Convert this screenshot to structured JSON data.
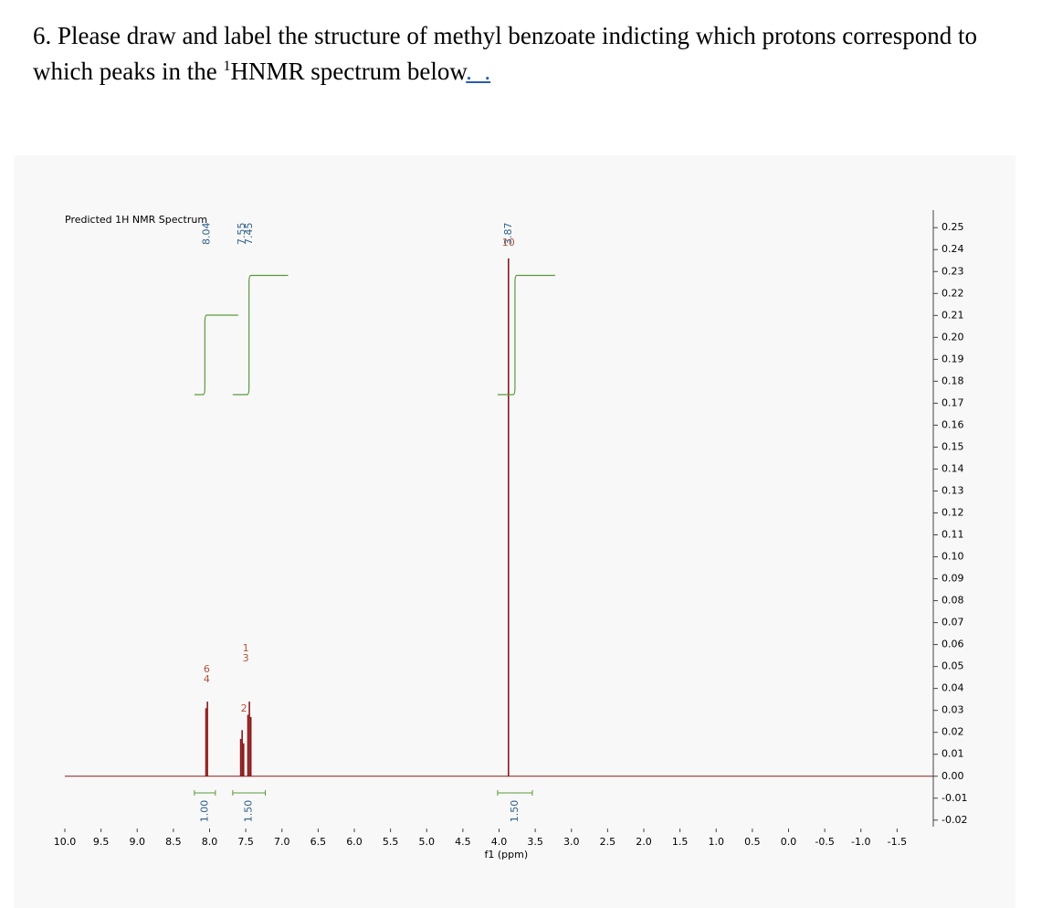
{
  "question": {
    "text": "6. Please draw and label the structure of methyl benzoate indicting which protons correspond to which peaks in the ",
    "superscript": "1",
    "text_after": "HNMR spectrum below",
    "trailing": "._."
  },
  "chart_data": {
    "type": "line",
    "title": "Predicted 1H NMR Spectrum",
    "x_label": "f1 (ppm)",
    "x": [
      8.05,
      8.03,
      7.57,
      7.55,
      7.53,
      7.47,
      7.45,
      7.43,
      3.87
    ],
    "series": [
      {
        "color": "#8b1a1a",
        "values": [
          0.031,
          0.034,
          0.017,
          0.021,
          0.015,
          0.028,
          0.034,
          0.027,
          0.236
        ]
      }
    ],
    "xlim": [
      10.0,
      -2.0
    ],
    "xticks": [
      {
        "value": 10,
        "label": "10.0"
      },
      9.5,
      {
        "value": 9,
        "label": "9.0"
      },
      8.5,
      {
        "value": 8,
        "label": "8.0"
      },
      7.5,
      {
        "value": 7,
        "label": "7.0"
      },
      6.5,
      {
        "value": 6,
        "label": "6.0"
      },
      5.5,
      {
        "value": 5,
        "label": "5.0"
      },
      4.5,
      {
        "value": 4,
        "label": "4.0"
      },
      3.5,
      {
        "value": 3,
        "label": "3.0"
      },
      2.5,
      {
        "value": 2,
        "label": "2.0"
      },
      1.5,
      {
        "value": 1,
        "label": "1.0"
      },
      0.5,
      {
        "value": 0,
        "label": "0.0"
      },
      -0.5,
      {
        "value": -1,
        "label": "-1.0"
      },
      -1.5
    ],
    "ylim": [
      -0.023,
      0.258
    ],
    "yticks": [
      {
        "value": 0.25,
        "label": "0.25"
      },
      {
        "value": 0.24,
        "label": "0.24"
      },
      {
        "value": 0.23,
        "label": "0.23"
      },
      {
        "value": 0.22,
        "label": "0.22"
      },
      {
        "value": 0.21,
        "label": "0.21"
      },
      {
        "value": 0.2,
        "label": "0.20"
      },
      {
        "value": 0.19,
        "label": "0.19"
      },
      {
        "value": 0.18,
        "label": "0.18"
      },
      {
        "value": 0.17,
        "label": "0.17"
      },
      {
        "value": 0.16,
        "label": "0.16"
      },
      {
        "value": 0.15,
        "label": "0.15"
      },
      {
        "value": 0.14,
        "label": "0.14"
      },
      {
        "value": 0.13,
        "label": "0.13"
      },
      {
        "value": 0.12,
        "label": "0.12"
      },
      {
        "value": 0.11,
        "label": "0.11"
      },
      {
        "value": 0.1,
        "label": "0.10"
      },
      {
        "value": 0.09,
        "label": "0.09"
      },
      {
        "value": 0.08,
        "label": "0.08"
      },
      {
        "value": 0.07,
        "label": "0.07"
      },
      {
        "value": 0.06,
        "label": "0.06"
      },
      {
        "value": 0.05,
        "label": "0.05"
      },
      {
        "value": 0.04,
        "label": "0.04"
      },
      {
        "value": 0.03,
        "label": "0.03"
      },
      {
        "value": 0.02,
        "label": "0.02"
      },
      {
        "value": 0.01,
        "label": "0.01"
      },
      {
        "value": 0,
        "label": "0.00"
      },
      {
        "value": -0.01,
        "label": "-0.01"
      },
      {
        "value": -0.02,
        "label": "-0.02"
      }
    ],
    "peak_labels": [
      8.04,
      7.55,
      7.45,
      3.87
    ],
    "atom_labels": [
      [
        6,
        4
      ],
      [
        1,
        3
      ],
      [
        2
      ],
      [
        10
      ]
    ],
    "integrals": [
      {
        "from": 8.21,
        "to": 7.92,
        "value": 1.0,
        "label": "1.00"
      },
      {
        "from": 7.68,
        "to": 7.23,
        "value": 1.5,
        "label": "1.50"
      },
      {
        "from": 4.02,
        "to": 3.54,
        "value": 1.5,
        "label": "1.50"
      }
    ],
    "integral_color": "#5a9a3a",
    "grid": false
  }
}
